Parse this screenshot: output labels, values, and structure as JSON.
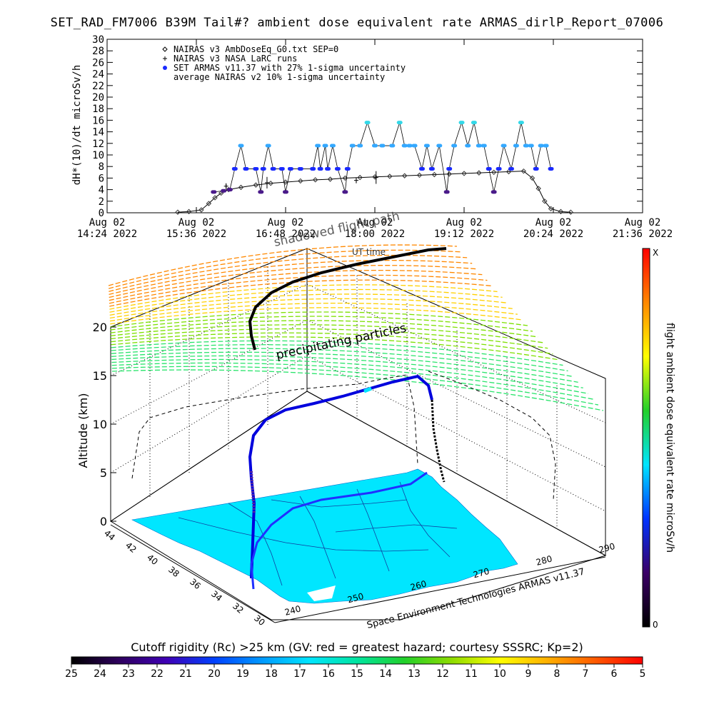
{
  "page": {
    "title": "SET_RAD_FM7006  B39M Tail#? ambient dose equivalent rate ARMAS_dirlP_Report_07006"
  },
  "chart_data": [
    {
      "type": "scatter",
      "panel": "dose-rate-timeseries",
      "ylabel": "dH*(10)/dt microSv/h",
      "xlabel": "UT time",
      "ylim": [
        0,
        30
      ],
      "yticks": [
        0,
        2,
        4,
        6,
        8,
        10,
        12,
        14,
        16,
        18,
        20,
        22,
        24,
        26,
        28,
        30
      ],
      "xlim_minutes_ut": [
        864,
        1296
      ],
      "xticks": [
        {
          "minute": 864,
          "date": "Aug 02",
          "time": "14:24 2022"
        },
        {
          "minute": 936,
          "date": "Aug 02",
          "time": "15:36 2022"
        },
        {
          "minute": 1008,
          "date": "Aug 02",
          "time": "16:48 2022"
        },
        {
          "minute": 1080,
          "date": "Aug 02",
          "time": "18:00 2022"
        },
        {
          "minute": 1152,
          "date": "Aug 02",
          "time": "19:12 2022"
        },
        {
          "minute": 1224,
          "date": "Aug 02",
          "time": "20:24 2022"
        },
        {
          "minute": 1296,
          "date": "Aug 02",
          "time": "21:36 2022"
        }
      ],
      "legend": [
        {
          "symbol": "diamond",
          "label": "NAIRAS v3 AmbDoseEq_G0.txt SEP=0"
        },
        {
          "symbol": "plus",
          "label": "NAIRAS v3 NASA LaRC runs"
        },
        {
          "symbol": "dot",
          "label": "SET ARMAS v11.37 with 27% 1-sigma uncertainty"
        },
        {
          "symbol": "none",
          "label": "average NAIRAS v2 10% 1-sigma uncertainty"
        }
      ],
      "series": [
        {
          "name": "NAIRAS v3 AmbDoseEq_G0.txt SEP=0",
          "style": "diamond",
          "points": [
            [
              921,
              0.1
            ],
            [
              930,
              0.2
            ],
            [
              940,
              0.5
            ],
            [
              946,
              1.6
            ],
            [
              951,
              2.6
            ],
            [
              956,
              3.4
            ],
            [
              962,
              4.0
            ],
            [
              972,
              4.4
            ],
            [
              984,
              4.8
            ],
            [
              996,
              5.1
            ],
            [
              1008,
              5.3
            ],
            [
              1020,
              5.5
            ],
            [
              1032,
              5.7
            ],
            [
              1044,
              5.8
            ],
            [
              1056,
              6.0
            ],
            [
              1068,
              6.1
            ],
            [
              1080,
              6.2
            ],
            [
              1092,
              6.3
            ],
            [
              1104,
              6.4
            ],
            [
              1116,
              6.5
            ],
            [
              1128,
              6.6
            ],
            [
              1140,
              6.7
            ],
            [
              1152,
              6.8
            ],
            [
              1164,
              6.9
            ],
            [
              1176,
              7.0
            ],
            [
              1188,
              7.1
            ],
            [
              1200,
              7.2
            ],
            [
              1207,
              6.0
            ],
            [
              1212,
              4.2
            ],
            [
              1217,
              2.0
            ],
            [
              1222,
              0.7
            ],
            [
              1230,
              0.2
            ],
            [
              1238,
              0.1
            ]
          ]
        },
        {
          "name": "NAIRAS v3 NASA LaRC runs",
          "style": "plus-errorbar",
          "points": [
            [
              960,
              4.6,
              0.5
            ],
            [
              993,
              5.2,
              1.0
            ],
            [
              1065,
              5.6,
              0.5
            ],
            [
              1081,
              6.1,
              1.1
            ]
          ]
        },
        {
          "name": "SET ARMAS v11.37 with 27% 1-sigma uncertainty",
          "style": "dot",
          "points": [
            [
              950,
              3.6
            ],
            [
              958,
              3.8
            ],
            [
              963,
              4.0
            ],
            [
              967,
              7.6
            ],
            [
              972,
              11.6
            ],
            [
              976,
              7.6
            ],
            [
              984,
              7.6
            ],
            [
              988,
              3.6
            ],
            [
              990,
              7.6
            ],
            [
              994,
              11.6
            ],
            [
              998,
              7.6
            ],
            [
              1005,
              7.6
            ],
            [
              1008,
              3.6
            ],
            [
              1012,
              7.6
            ],
            [
              1020,
              7.6
            ],
            [
              1030,
              7.6
            ],
            [
              1034,
              11.6
            ],
            [
              1036,
              7.6
            ],
            [
              1040,
              11.6
            ],
            [
              1042,
              7.6
            ],
            [
              1046,
              11.6
            ],
            [
              1050,
              7.6
            ],
            [
              1056,
              3.6
            ],
            [
              1058,
              7.6
            ],
            [
              1062,
              11.6
            ],
            [
              1068,
              11.6
            ],
            [
              1074,
              15.6
            ],
            [
              1080,
              11.6
            ],
            [
              1086,
              11.6
            ],
            [
              1094,
              11.6
            ],
            [
              1100,
              15.6
            ],
            [
              1104,
              11.6
            ],
            [
              1108,
              11.6
            ],
            [
              1112,
              11.6
            ],
            [
              1118,
              7.6
            ],
            [
              1122,
              11.6
            ],
            [
              1126,
              7.6
            ],
            [
              1132,
              11.6
            ],
            [
              1138,
              3.6
            ],
            [
              1140,
              7.6
            ],
            [
              1144,
              11.6
            ],
            [
              1150,
              15.6
            ],
            [
              1155,
              11.6
            ],
            [
              1160,
              15.6
            ],
            [
              1164,
              11.6
            ],
            [
              1168,
              11.6
            ],
            [
              1172,
              7.6
            ],
            [
              1176,
              3.6
            ],
            [
              1180,
              7.6
            ],
            [
              1184,
              11.6
            ],
            [
              1190,
              7.6
            ],
            [
              1194,
              11.6
            ],
            [
              1198,
              15.6
            ],
            [
              1202,
              11.6
            ],
            [
              1206,
              11.6
            ],
            [
              1210,
              7.6
            ],
            [
              1214,
              11.6
            ],
            [
              1218,
              11.6
            ],
            [
              1222,
              7.6
            ]
          ]
        }
      ]
    },
    {
      "type": "3d-flight-path",
      "panel": "flight-path-3d",
      "zlabel": "Altitude (km)",
      "zticks": [
        0,
        5,
        10,
        15,
        20
      ],
      "zlim": [
        0,
        20
      ],
      "lat_ticks": [
        44,
        42,
        40,
        38,
        36,
        34,
        32,
        30
      ],
      "lon_ticks": [
        240,
        250,
        260,
        270,
        280,
        290
      ],
      "annotations": {
        "plane_label": "precipitating particles",
        "shadow_label": "shadowed flight path",
        "credit": "Space Environment Technologies ARMAS v11.37",
        "ut_time": "UT time"
      },
      "path_colors": [
        "#0000dd",
        "#00e5ff",
        "#000000",
        "#5b2aa1",
        "#1a2aff"
      ],
      "map_color": "#00e6ff",
      "hazard_plane_colors": [
        "#ff8800",
        "#ffd000",
        "#7de000",
        "#29e46b"
      ]
    },
    {
      "type": "colorbar",
      "panel": "dose-colorbar",
      "label": "flight ambient dose equivalent rate microSv/h",
      "top_label": "X",
      "bottom_label": "0",
      "colors": [
        "#000000",
        "#3b0066",
        "#0033ff",
        "#00e5ff",
        "#22d02a",
        "#ffff00",
        "#ff8800",
        "#ff0000"
      ]
    },
    {
      "type": "colorbar",
      "panel": "cutoff-rigidity-colorbar",
      "title": "Cutoff rigidity (Rc) >25 km (GV: red = greatest hazard; courtesy SSSRC; Kp=2)",
      "tick_labels": [
        25,
        24,
        23,
        22,
        21,
        20,
        19,
        18,
        17,
        16,
        15,
        14,
        13,
        12,
        11,
        10,
        9,
        8,
        7,
        6,
        5
      ],
      "colors": [
        "#000000",
        "#2e005d",
        "#3f00b5",
        "#0040ff",
        "#0099ff",
        "#00e5ff",
        "#00e5a0",
        "#22d02a",
        "#8fdc00",
        "#ffff00",
        "#ffb000",
        "#ff5a00",
        "#ff0000"
      ]
    }
  ]
}
